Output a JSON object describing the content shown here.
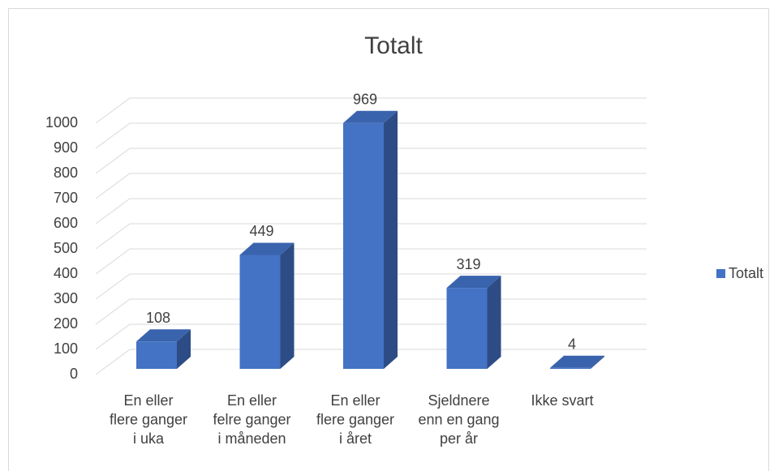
{
  "chart_data": {
    "type": "bar3d",
    "title": "Totalt",
    "categories": [
      "En eller\nflere ganger\ni uka",
      "En eller\nfelre ganger\ni måneden",
      "En eller\nflere ganger\ni året",
      "Sjeldnere\nenn en gang\nper år",
      "Ikke svart"
    ],
    "series": [
      {
        "name": "Totalt",
        "color": "#4472c4",
        "values": [
          108,
          449,
          969,
          319,
          4
        ]
      }
    ],
    "ylim": [
      0,
      1000
    ],
    "yticks": [
      0,
      100,
      200,
      300,
      400,
      500,
      600,
      700,
      800,
      900,
      1000
    ],
    "grid": true,
    "legend": "right"
  }
}
